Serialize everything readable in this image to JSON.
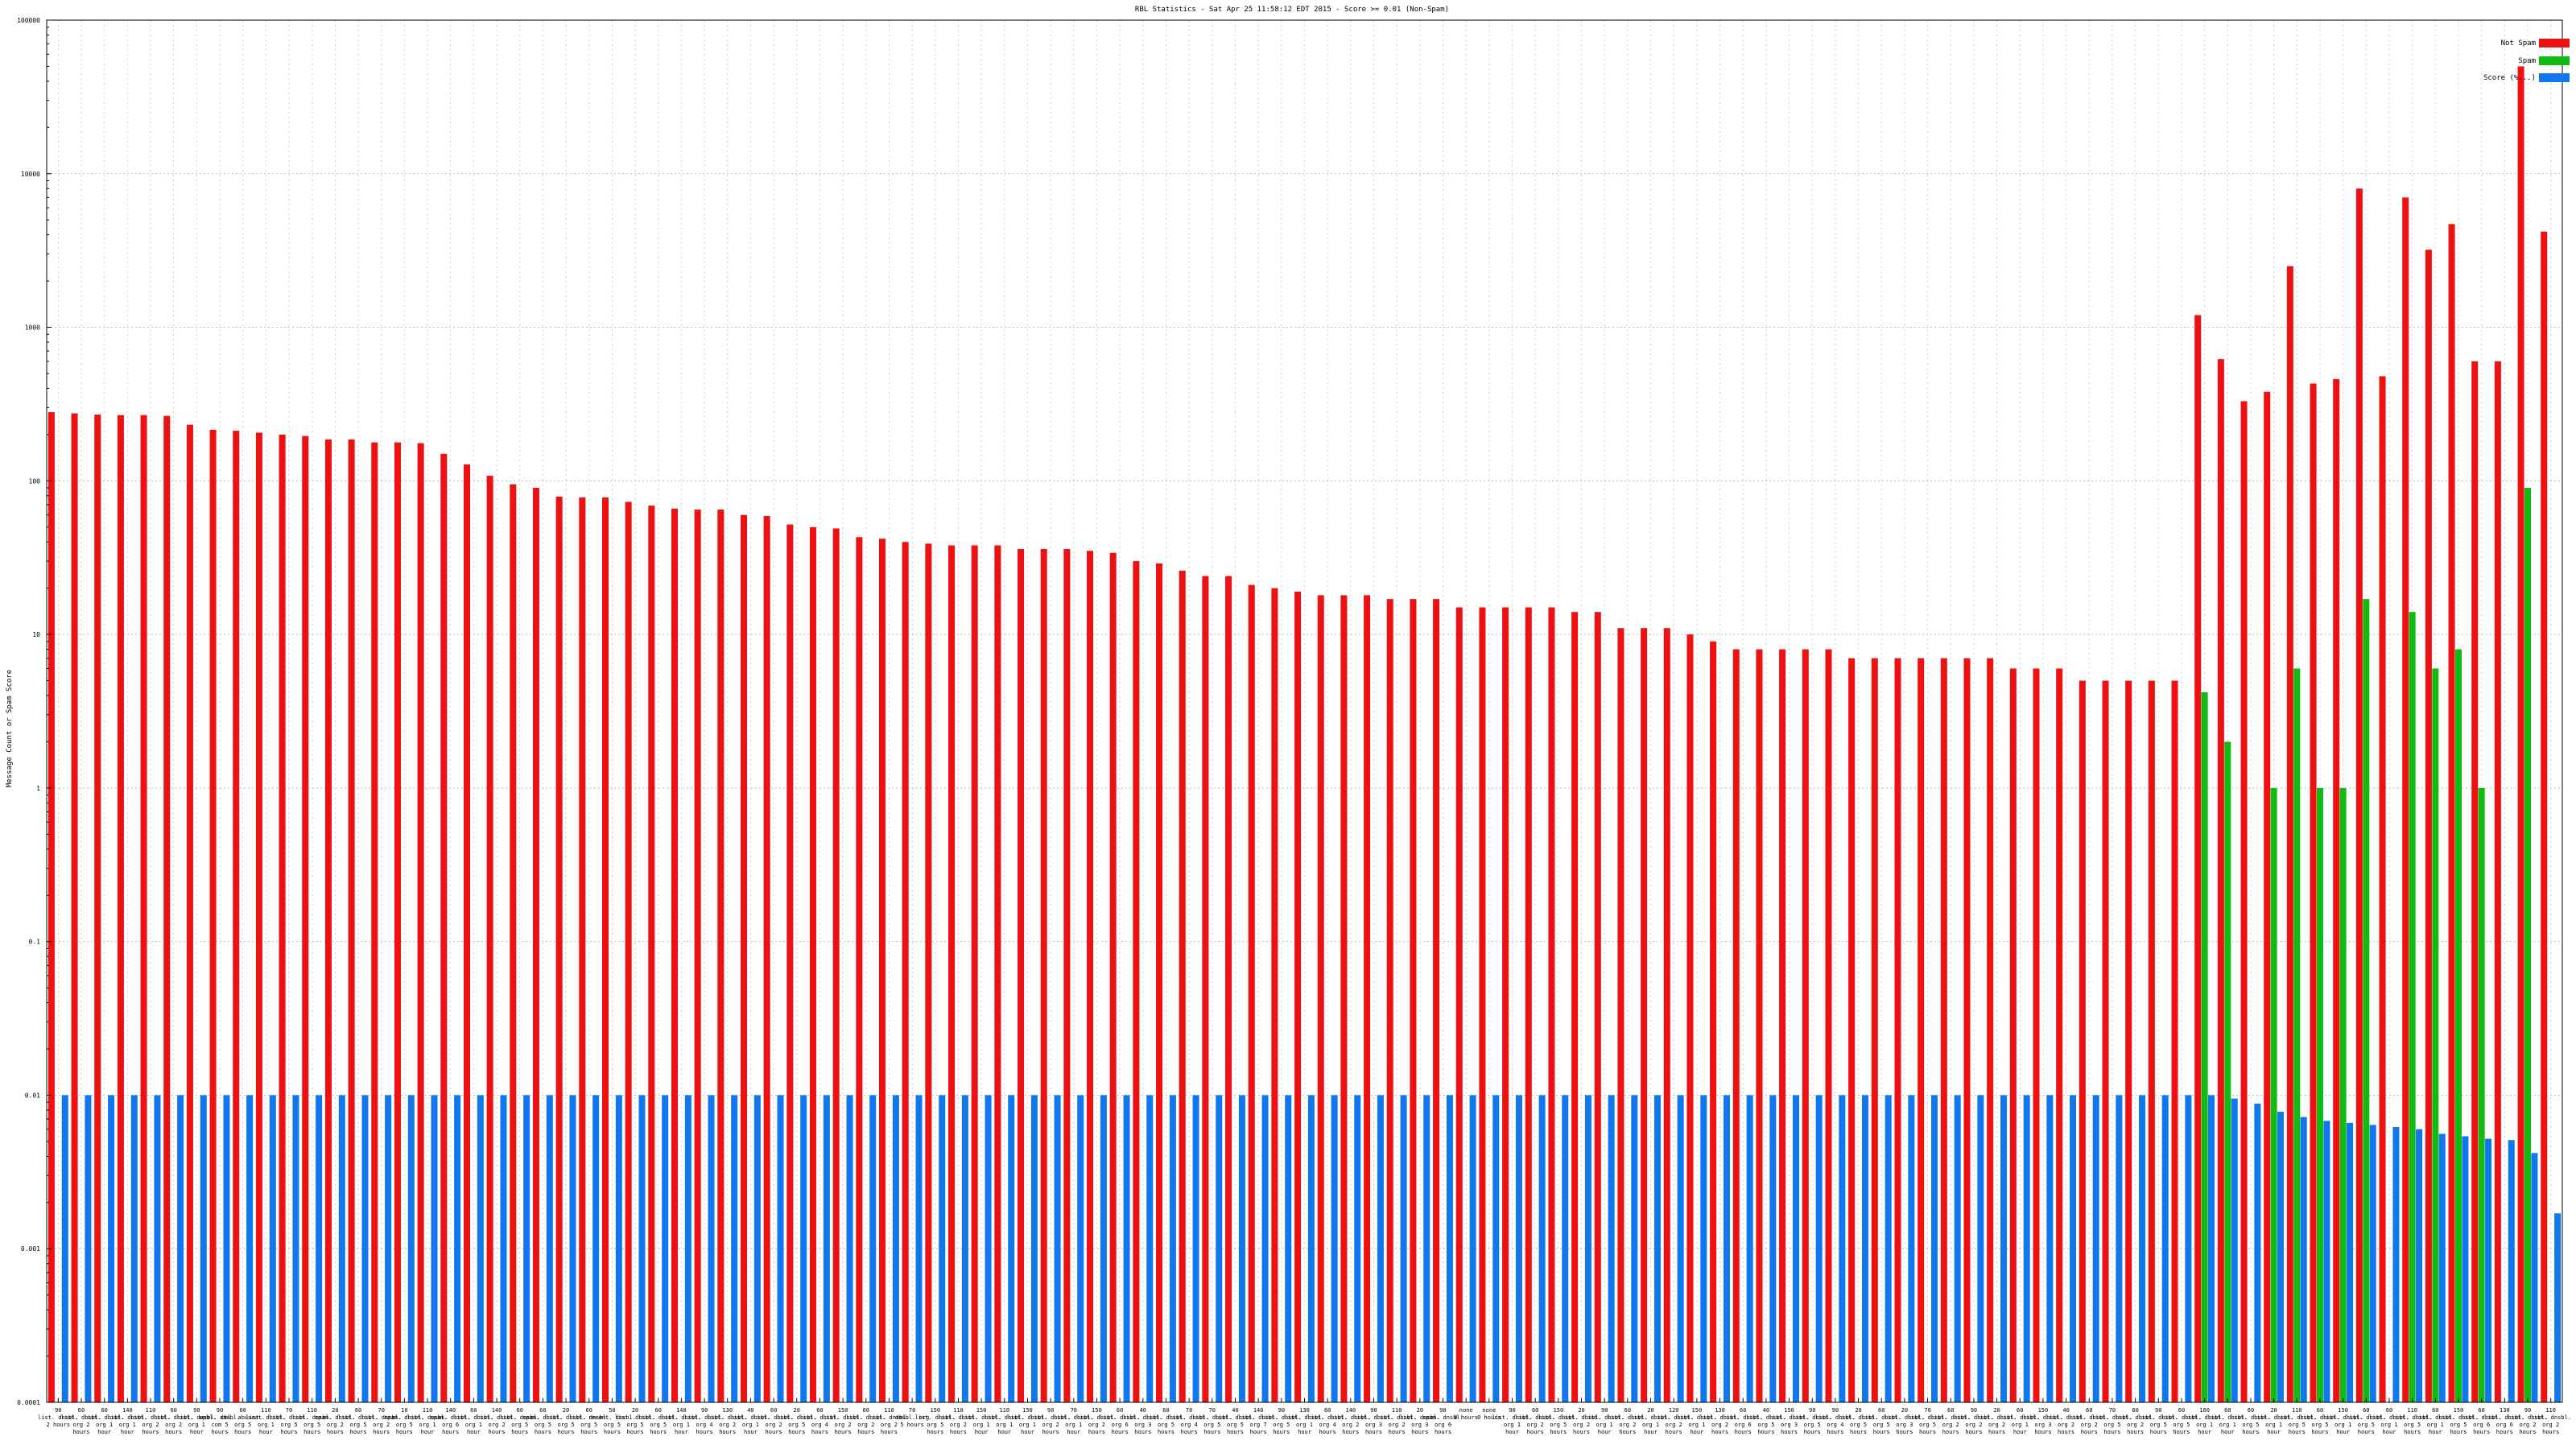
{
  "chart_data": {
    "type": "bar",
    "title": "RBL Statistics - Sat Apr 25 11:58:12 EDT 2015 - Score >= 0.01 (Non-Spam)",
    "ylabel": "Message Count or Spam Score",
    "xlabel": "",
    "y_scale": "log",
    "ylim": [
      0.0001,
      100000
    ],
    "y_ticks": [
      "100000",
      "10000",
      "1000",
      "100",
      "10",
      "1",
      "0.1",
      "0.01",
      "0.001",
      "0.0001"
    ],
    "grid": true,
    "legend_position": "top-right",
    "colors": {
      "not_spam": "#ee1111",
      "spam": "#11bb11",
      "score": "#1177ee"
    },
    "series": [
      {
        "name": "Not Spam",
        "values": [
          280,
          275,
          270,
          268,
          268,
          265,
          232,
          215,
          212,
          206,
          200,
          196,
          186,
          186,
          178,
          178,
          176,
          150,
          128,
          108,
          95,
          90,
          79,
          78,
          78,
          73,
          69,
          66,
          65,
          65,
          60,
          59,
          52,
          50,
          49,
          43,
          42,
          40,
          39,
          38,
          38,
          38,
          36,
          36,
          36,
          35,
          34,
          30,
          29,
          26,
          24,
          24,
          21,
          20,
          19,
          18,
          18,
          18,
          17,
          17,
          17,
          15,
          15,
          15,
          15,
          15,
          14,
          14,
          11,
          11,
          11,
          10,
          9,
          8,
          8,
          8,
          8,
          8,
          7,
          7,
          7,
          7,
          7,
          7,
          7,
          6,
          6,
          6,
          5,
          5,
          5,
          5,
          5,
          1200,
          620,
          330,
          380,
          2500,
          430,
          460,
          8000,
          480,
          7000,
          3200,
          4700,
          600,
          600,
          50000,
          4200
        ]
      },
      {
        "name": "Spam",
        "values": [
          null,
          null,
          null,
          null,
          null,
          null,
          null,
          null,
          null,
          null,
          null,
          null,
          null,
          null,
          null,
          null,
          null,
          null,
          null,
          null,
          null,
          null,
          null,
          null,
          null,
          null,
          null,
          null,
          null,
          null,
          null,
          null,
          null,
          null,
          null,
          null,
          null,
          null,
          null,
          null,
          null,
          null,
          null,
          null,
          null,
          null,
          null,
          null,
          null,
          null,
          null,
          null,
          null,
          null,
          null,
          null,
          null,
          null,
          null,
          null,
          null,
          null,
          null,
          null,
          null,
          null,
          null,
          null,
          null,
          null,
          null,
          null,
          null,
          null,
          null,
          null,
          null,
          null,
          null,
          null,
          null,
          null,
          null,
          null,
          null,
          null,
          null,
          null,
          null,
          null,
          null,
          null,
          null,
          4.2,
          2,
          null,
          1,
          6,
          1,
          1,
          17,
          null,
          14,
          6,
          8,
          1,
          null,
          90,
          null
        ]
      },
      {
        "name": "Score (%...)",
        "values": [
          0.01,
          0.01,
          0.01,
          0.01,
          0.01,
          0.01,
          0.01,
          0.01,
          0.01,
          0.01,
          0.01,
          0.01,
          0.01,
          0.01,
          0.01,
          0.01,
          0.01,
          0.01,
          0.01,
          0.01,
          0.01,
          0.01,
          0.01,
          0.01,
          0.01,
          0.01,
          0.01,
          0.01,
          0.01,
          0.01,
          0.01,
          0.01,
          0.01,
          0.01,
          0.01,
          0.01,
          0.01,
          0.01,
          0.01,
          0.01,
          0.01,
          0.01,
          0.01,
          0.01,
          0.01,
          0.01,
          0.01,
          0.01,
          0.01,
          0.01,
          0.01,
          0.01,
          0.01,
          0.01,
          0.01,
          0.01,
          0.01,
          0.01,
          0.01,
          0.01,
          0.01,
          0.01,
          0.01,
          0.01,
          0.01,
          0.01,
          0.01,
          0.01,
          0.01,
          0.01,
          0.01,
          0.01,
          0.01,
          0.01,
          0.01,
          0.01,
          0.01,
          0.01,
          0.01,
          0.01,
          0.01,
          0.01,
          0.01,
          0.01,
          0.01,
          0.01,
          0.01,
          0.01,
          0.01,
          0.01,
          0.01,
          0.01,
          0.01,
          0.01,
          0.0095,
          0.0088,
          0.0078,
          0.0072,
          0.0068,
          0.0066,
          0.0064,
          0.0062,
          0.006,
          0.0056,
          0.0054,
          0.0052,
          0.0051,
          0.0042,
          0.0017
        ]
      }
    ],
    "categories": [
      "90 list. dnsbl. 2 hours",
      "60 list. dnsbl. org 2 hours",
      "60 list. dnsbl. org 1 hour",
      "140 list. dnsbl. org 1 hour",
      "110 list. dnsbl. org 2 hours",
      "60 list. dnsbl. org 2 hours",
      "90 list. dnsbl. org 1 hour",
      "90 wpbl. dnsbl. com 5 hours",
      "60 cbl. abuseat. org 5 hours",
      "110 list. dnsbl. org 1 hour",
      "70 list. dnsbl. org 5 hours",
      "110 list. dnsbl. org 5 hours",
      "20 spam. dnsbl. org 2 hours",
      "60 list. dnsbl. org 5 hours",
      "70 list. dnsbl. org 2 hours",
      "10 spam. dnsbl. org 5 hours",
      "110 list. dnsbl. org 1 hour",
      "140 spam. dnsbl. org 6 hours",
      "60 list. dnsbl. org 1 hour",
      "140 list. dnsbl. org 2 hours",
      "60 list. dnsbl. org 5 hours",
      "60 spam. dnsbl. org 5 hours",
      "20 list. dnsbl. org 5 hours",
      "60 list. dnsbl. org 5 hours",
      "50 recent. dnsbl. org 5 hours",
      "20 list. dnsbl. org 5 hours",
      "60 list. dnsbl. org 5 hours",
      "140 list. dnsbl. org 1 hour",
      "90 list. dnsbl. org 4 hours",
      "130 list. dnsbl. org 2 hours",
      "40 list. dnsbl. org 1 hour",
      "60 list. dnsbl. org 2 hours",
      "20 list. dnsbl. org 5 hours",
      "60 list. dnsbl. org 4 hours",
      "150 list. dnsbl. org 2 hours",
      "60 list. dnsbl. org 2 hours",
      "110 list. dnsbl. org 2 hours",
      "70 dnsbl. org 5 hours",
      "150 list. dnsbl. org 5 hours",
      "110 list. dnsbl. org 2 hours",
      "150 list. dnsbl. org 1 hour",
      "110 list. dnsbl. org 1 hour",
      "150 list. dnsbl. org 1 hour",
      "90 list. dnsbl. org 2 hours",
      "70 list. dnsbl. org 1 hour",
      "150 list. dnsbl. org 2 hours",
      "60 list. dnsbl. org 6 hours",
      "40 list. dnsbl. org 3 hours",
      "60 list. dnsbl. org 5 hours",
      "70 list. dnsbl. org 4 hours",
      "70 list. dnsbl. org 5 hours",
      "40 list. dnsbl. org 5 hours",
      "140 list. dnsbl. org 7 hours",
      "90 list. dnsbl. org 5 hours",
      "130 list. dnsbl. org 1 hour",
      "60 list. dnsbl. org 4 hours",
      "140 list. dnsbl. org 2 hours",
      "90 list. dnsbl. org 3 hours",
      "110 list. dnsbl. org 2 hours",
      "20 list. dnsbl. org 3 hours",
      "90 spam. dnsbl. org 6 hours",
      "none 0 hours",
      "none 0 hours",
      "90 list. dnsbl. org 1 hour",
      "60 list. dnsbl. org 2 hours",
      "150 list. dnsbl. org 5 hours",
      "20 list. dnsbl. org 2 hours",
      "90 list. dnsbl. org 1 hour",
      "60 list. dnsbl. org 2 hours",
      "20 list. dnsbl. org 1 hour",
      "120 list. dnsbl. org 2 hours",
      "150 list. dnsbl. org 1 hour",
      "130 list. dnsbl. org 2 hours",
      "60 list. dnsbl. org 6 hours",
      "40 list. dnsbl. org 5 hours",
      "150 list. dnsbl. org 3 hours",
      "90 list. dnsbl. org 5 hours",
      "90 list. dnsbl. org 4 hours",
      "20 list. dnsbl. org 5 hours",
      "60 list. dnsbl. org 5 hours",
      "20 list. dnsbl. org 3 hours",
      "70 list. dnsbl. org 5 hours",
      "60 list. dnsbl. org 2 hours",
      "90 list. dnsbl. org 2 hours",
      "20 list. dnsbl. org 2 hours",
      "60 list. dnsbl. org 1 hour",
      "150 list. dnsbl. org 3 hours",
      "40 list. dnsbl. org 2 hours",
      "60 list. dnsbl. org 2 hours",
      "70 list. dnsbl. org 5 hours",
      "60 list. dnsbl. org 2 hours",
      "90 list. dnsbl. org 5 hours",
      "60 list. dnsbl. org 5 hours",
      "160 list. dnsbl. org 1 hour",
      "60 list. dnsbl. org 1 hour",
      "60 list. dnsbl. org 5 hours",
      "20 list. dnsbl. org 1 hour",
      "110 list. dnsbl. org 5 hours",
      "60 list. dnsbl. org 5 hours",
      "150 list. dnsbl. org 1 hour",
      "60 list. dnsbl. org 5 hours",
      "60 list. dnsbl. org 1 hour",
      "110 list. dnsbl. org 5 hours",
      "60 list. dnsbl. org 1 hour",
      "150 list. dnsbl. org 5 hours",
      "60 list. dnsbl. org 6 hours",
      "130 list. dnsbl. org 6 hours",
      "90 list. dnsbl. org 2 hours",
      "110 list. dnsbl. org 2 hours"
    ]
  },
  "legend": {
    "not_spam_label": "Not Spam",
    "spam_label": "Spam",
    "score_label": "Score (%...)"
  }
}
